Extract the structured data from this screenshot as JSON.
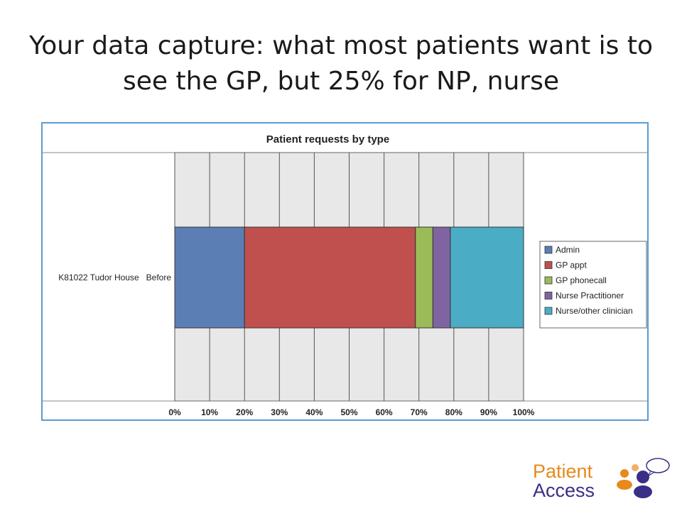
{
  "slide": {
    "title_line1": "Your data capture: what most patients want is to",
    "title_line2": "see the GP, but 25% for NP, nurse"
  },
  "chart_data": {
    "type": "bar",
    "orientation": "horizontal",
    "stacked": true,
    "title": "Patient requests by type",
    "categories": [
      "K81022 Tudor House   Before"
    ],
    "series": [
      {
        "name": "Admin",
        "values": [
          20
        ],
        "color": "#5b7fb5"
      },
      {
        "name": "GP appt",
        "values": [
          49
        ],
        "color": "#c0504d"
      },
      {
        "name": "GP phonecall",
        "values": [
          5
        ],
        "color": "#9bbb59"
      },
      {
        "name": "Nurse Practitioner",
        "values": [
          5
        ],
        "color": "#8064a2"
      },
      {
        "name": "Nurse/other clinician",
        "values": [
          21
        ],
        "color": "#4bacc6"
      }
    ],
    "xlim": [
      0,
      100
    ],
    "xticks": [
      "0%",
      "10%",
      "20%",
      "30%",
      "40%",
      "50%",
      "60%",
      "70%",
      "80%",
      "90%",
      "100%"
    ],
    "grid": true,
    "legend_position": "right",
    "plot_background": "#e8e8e8"
  },
  "logo": {
    "line1": "Patient",
    "line2": "Access",
    "colors": {
      "orange": "#e8891e",
      "purple": "#3a2f86"
    }
  }
}
